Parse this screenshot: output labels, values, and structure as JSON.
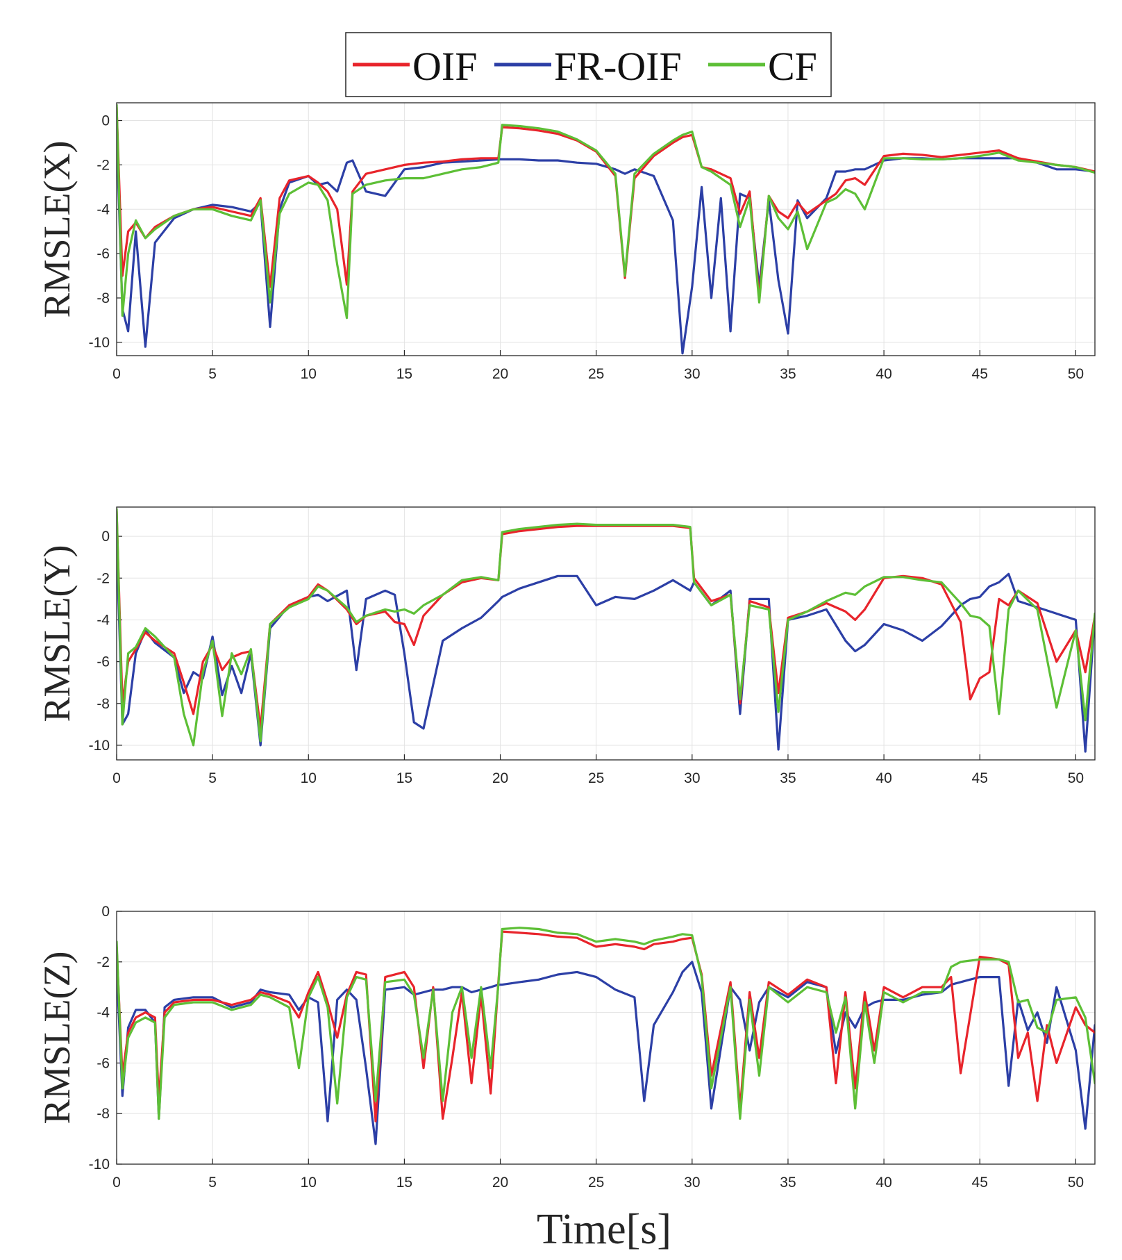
{
  "chart_data": {
    "type": "line",
    "xlabel": "Time[s]",
    "xlim": [
      0,
      51
    ],
    "xticks": [
      0,
      5,
      10,
      15,
      20,
      25,
      30,
      35,
      40,
      45,
      50
    ],
    "grid": true,
    "legend": {
      "placement": "top-center",
      "entries": [
        {
          "name": "OIF",
          "color": "#e8242b"
        },
        {
          "name": "FR-OIF",
          "color": "#2c3fa6"
        },
        {
          "name": "CF",
          "color": "#5dbf36"
        }
      ]
    },
    "panels": [
      {
        "ylabel": "RMSLE(X)",
        "ylim": [
          -10.6,
          0.8
        ],
        "yticks": [
          0,
          -2,
          -4,
          -6,
          -8,
          -10
        ],
        "x": [
          0,
          0.3,
          0.6,
          1,
          1.5,
          2,
          3,
          4,
          5,
          6,
          7,
          7.5,
          8,
          8.5,
          9,
          10,
          10.5,
          11,
          11.5,
          12,
          12.3,
          13,
          14,
          15,
          16,
          17,
          18,
          19,
          19.9,
          20.1,
          21,
          22,
          23,
          24,
          25,
          26,
          26.5,
          27,
          28,
          29,
          29.5,
          30,
          30.5,
          31,
          31.5,
          32,
          32.5,
          33,
          33.5,
          34,
          34.5,
          35,
          35.5,
          36,
          37,
          37.5,
          38,
          38.5,
          39,
          40,
          41,
          42,
          43,
          44,
          45,
          46,
          47,
          48,
          49,
          50,
          51
        ],
        "series": [
          {
            "name": "OIF",
            "values": [
              0.6,
              -7,
              -5,
              -4.6,
              -5.3,
              -4.8,
              -4.3,
              -4,
              -3.9,
              -4.1,
              -4.3,
              -3.5,
              -7.5,
              -3.5,
              -2.7,
              -2.5,
              -2.8,
              -3.2,
              -4,
              -7.4,
              -3.2,
              -2.4,
              -2.2,
              -2,
              -1.9,
              -1.85,
              -1.75,
              -1.7,
              -1.7,
              -0.3,
              -0.35,
              -0.45,
              -0.6,
              -0.9,
              -1.4,
              -2.5,
              -7.1,
              -2.6,
              -1.6,
              -1.0,
              -0.75,
              -0.65,
              -2.1,
              -2.2,
              -2.4,
              -2.6,
              -4.2,
              -3.2,
              -8,
              -3.4,
              -4.1,
              -4.4,
              -3.7,
              -4.2,
              -3.6,
              -3.3,
              -2.7,
              -2.6,
              -2.9,
              -1.6,
              -1.5,
              -1.55,
              -1.65,
              -1.55,
              -1.45,
              -1.35,
              -1.7,
              -1.85,
              -2,
              -2.1,
              -2.3
            ]
          },
          {
            "name": "FR-OIF",
            "values": [
              -0.5,
              -8.5,
              -9.5,
              -5,
              -10.2,
              -5.5,
              -4.4,
              -4,
              -3.8,
              -3.9,
              -4.1,
              -3.7,
              -9.3,
              -4,
              -2.8,
              -2.5,
              -2.9,
              -2.8,
              -3.2,
              -1.9,
              -1.8,
              -3.2,
              -3.4,
              -2.2,
              -2.1,
              -1.9,
              -1.85,
              -1.8,
              -1.75,
              -1.75,
              -1.75,
              -1.8,
              -1.8,
              -1.9,
              -1.95,
              -2.2,
              -2.4,
              -2.2,
              -2.5,
              -4.5,
              -10.5,
              -7.5,
              -3,
              -8,
              -3.5,
              -9.5,
              -3.3,
              -3.5,
              -7.5,
              -3.6,
              -7.2,
              -9.6,
              -3.6,
              -4.4,
              -3.5,
              -2.3,
              -2.3,
              -2.2,
              -2.2,
              -1.8,
              -1.7,
              -1.7,
              -1.75,
              -1.7,
              -1.7,
              -1.7,
              -1.7,
              -1.9,
              -2.2,
              -2.2,
              -2.3
            ]
          },
          {
            "name": "CF",
            "values": [
              0.7,
              -8.8,
              -6,
              -4.5,
              -5.3,
              -4.9,
              -4.3,
              -4,
              -4,
              -4.3,
              -4.5,
              -3.6,
              -8.2,
              -4.2,
              -3.3,
              -2.8,
              -2.9,
              -3.6,
              -6.5,
              -8.9,
              -3.3,
              -2.9,
              -2.7,
              -2.6,
              -2.6,
              -2.4,
              -2.2,
              -2.1,
              -1.9,
              -0.2,
              -0.25,
              -0.35,
              -0.5,
              -0.85,
              -1.35,
              -2.4,
              -7.0,
              -2.4,
              -1.5,
              -0.9,
              -0.65,
              -0.5,
              -2.1,
              -2.3,
              -2.6,
              -2.9,
              -4.8,
              -3.5,
              -8.2,
              -3.4,
              -4.4,
              -4.9,
              -4.1,
              -5.8,
              -3.7,
              -3.5,
              -3.1,
              -3.3,
              -4.0,
              -1.7,
              -1.7,
              -1.75,
              -1.75,
              -1.7,
              -1.6,
              -1.45,
              -1.8,
              -1.9,
              -2.0,
              -2.1,
              -2.35
            ]
          }
        ]
      },
      {
        "ylabel": "RMSLE(Y)",
        "ylim": [
          -10.7,
          1.4
        ],
        "yticks": [
          0,
          -2,
          -4,
          -6,
          -8,
          -10
        ],
        "x": [
          0,
          0.3,
          0.6,
          1,
          1.5,
          2,
          3,
          3.5,
          4,
          4.5,
          5,
          5.5,
          6,
          6.5,
          7,
          7.5,
          8,
          9,
          10,
          10.5,
          11,
          12,
          12.5,
          13,
          14,
          14.5,
          15,
          15.5,
          16,
          17,
          18,
          19,
          19.9,
          20.1,
          21,
          22,
          23,
          24,
          25,
          26,
          27,
          28,
          29,
          29.9,
          30.1,
          31,
          32,
          32.5,
          33,
          34,
          34.5,
          35,
          36,
          37,
          38,
          38.5,
          39,
          40,
          41,
          42,
          43,
          44,
          44.5,
          45,
          45.5,
          46,
          46.5,
          47,
          48,
          49,
          50,
          50.5,
          51
        ],
        "series": [
          {
            "name": "OIF",
            "values": [
              1.2,
              -8,
              -6,
              -5.4,
              -4.6,
              -5,
              -5.6,
              -7,
              -8.5,
              -6,
              -5.2,
              -6.4,
              -5.8,
              -5.6,
              -5.5,
              -9.2,
              -4.2,
              -3.3,
              -2.9,
              -2.3,
              -2.6,
              -3.5,
              -4.2,
              -3.8,
              -3.6,
              -4.1,
              -4.2,
              -5.2,
              -3.8,
              -2.8,
              -2.2,
              -2,
              -2.1,
              0.1,
              0.25,
              0.35,
              0.45,
              0.5,
              0.5,
              0.5,
              0.5,
              0.5,
              0.5,
              0.4,
              -2,
              -3.1,
              -2.8,
              -8,
              -3.1,
              -3.4,
              -7.5,
              -3.9,
              -3.6,
              -3.2,
              -3.6,
              -4,
              -3.5,
              -2,
              -1.9,
              -2,
              -2.3,
              -4.1,
              -7.8,
              -6.8,
              -6.5,
              -3,
              -3.3,
              -2.6,
              -3.2,
              -6,
              -4.5,
              -6.5,
              -3.8
            ]
          },
          {
            "name": "FR-OIF",
            "values": [
              -0.2,
              -9,
              -8.5,
              -5.6,
              -4.5,
              -5.1,
              -5.8,
              -7.5,
              -6.5,
              -6.8,
              -4.8,
              -7.6,
              -6.2,
              -7.5,
              -5.6,
              -10,
              -4.4,
              -3.3,
              -2.9,
              -2.8,
              -3.1,
              -2.6,
              -6.4,
              -3,
              -2.6,
              -2.8,
              -5.6,
              -8.9,
              -9.2,
              -5,
              -4.4,
              -3.9,
              -3.1,
              -2.9,
              -2.5,
              -2.2,
              -1.9,
              -1.9,
              -3.3,
              -2.9,
              -3,
              -2.6,
              -2.1,
              -2.6,
              -2.2,
              -3.3,
              -2.6,
              -8.5,
              -3,
              -3,
              -10.2,
              -4,
              -3.8,
              -3.5,
              -5,
              -5.5,
              -5.2,
              -4.2,
              -4.5,
              -5,
              -4.3,
              -3.3,
              -3,
              -2.9,
              -2.4,
              -2.2,
              -1.8,
              -3.1,
              -3.4,
              -3.7,
              -4,
              -10.3,
              -3.8
            ]
          },
          {
            "name": "CF",
            "values": [
              1.3,
              -9,
              -5.6,
              -5.3,
              -4.4,
              -4.8,
              -5.8,
              -8.5,
              -10,
              -6.5,
              -5,
              -8.6,
              -5.6,
              -6.6,
              -5.4,
              -9.8,
              -4.2,
              -3.4,
              -3,
              -2.4,
              -2.6,
              -3.4,
              -4.1,
              -3.8,
              -3.5,
              -3.6,
              -3.5,
              -3.7,
              -3.3,
              -2.8,
              -2.1,
              -1.95,
              -2.1,
              0.2,
              0.35,
              0.45,
              0.55,
              0.6,
              0.55,
              0.55,
              0.55,
              0.55,
              0.55,
              0.45,
              -2.2,
              -3.3,
              -2.8,
              -7.8,
              -3.3,
              -3.5,
              -8.4,
              -4,
              -3.6,
              -3.1,
              -2.7,
              -2.8,
              -2.4,
              -1.95,
              -1.95,
              -2.1,
              -2.2,
              -3.2,
              -3.8,
              -3.9,
              -4.3,
              -8.5,
              -3.5,
              -2.6,
              -3.5,
              -8.2,
              -4.5,
              -8.8,
              -3.7
            ]
          }
        ]
      },
      {
        "ylabel": "RMSLE(Z)",
        "ylim": [
          -10,
          0
        ],
        "yticks": [
          0,
          -2,
          -4,
          -6,
          -8,
          -10
        ],
        "x": [
          0,
          0.3,
          0.6,
          1,
          1.5,
          2,
          2.2,
          2.5,
          3,
          4,
          5,
          6,
          7,
          7.5,
          8,
          9,
          9.5,
          10,
          10.5,
          11,
          11.5,
          12,
          12.5,
          13,
          13.5,
          14,
          15,
          15.5,
          16,
          16.5,
          17,
          17.5,
          18,
          18.5,
          19,
          19.5,
          19.9,
          20.1,
          21,
          22,
          23,
          24,
          25,
          26,
          27,
          27.5,
          28,
          29,
          29.5,
          30,
          30.5,
          31,
          32,
          32.5,
          33,
          33.5,
          34,
          35,
          36,
          37,
          37.5,
          38,
          38.5,
          39,
          39.5,
          40,
          41,
          42,
          43,
          43.5,
          44,
          45,
          46,
          46.5,
          47,
          47.5,
          48,
          48.5,
          49,
          50,
          50.5,
          51
        ],
        "series": [
          {
            "name": "OIF",
            "values": [
              -1.4,
              -6.5,
              -4.8,
              -4.2,
              -4.0,
              -4.2,
              -7.5,
              -4.0,
              -3.6,
              -3.5,
              -3.5,
              -3.7,
              -3.5,
              -3.2,
              -3.3,
              -3.6,
              -4.2,
              -3.2,
              -2.4,
              -3.6,
              -5,
              -3.3,
              -2.4,
              -2.5,
              -8.3,
              -2.6,
              -2.4,
              -3,
              -6.2,
              -3,
              -8.2,
              -5.8,
              -3.2,
              -6.8,
              -3.3,
              -7.2,
              -2.8,
              -0.8,
              -0.85,
              -0.9,
              -1,
              -1.05,
              -1.4,
              -1.3,
              -1.4,
              -1.5,
              -1.3,
              -1.2,
              -1.1,
              -1.05,
              -2.5,
              -6.5,
              -2.8,
              -7.8,
              -3.2,
              -5.8,
              -2.8,
              -3.3,
              -2.7,
              -3,
              -6.8,
              -3.2,
              -7,
              -3.2,
              -5.5,
              -3,
              -3.4,
              -3,
              -3,
              -2.6,
              -6.4,
              -1.8,
              -1.9,
              -2.1,
              -5.8,
              -4.8,
              -7.5,
              -4.5,
              -6,
              -3.8,
              -4.5,
              -4.8
            ]
          },
          {
            "name": "FR-OIF",
            "values": [
              -2.1,
              -7.3,
              -4.6,
              -3.9,
              -3.9,
              -4.4,
              -8.2,
              -3.8,
              -3.5,
              -3.4,
              -3.4,
              -3.8,
              -3.6,
              -3.1,
              -3.2,
              -3.3,
              -3.9,
              -3.4,
              -3.6,
              -8.3,
              -3.5,
              -3.1,
              -3.5,
              -6.2,
              -9.2,
              -3.1,
              -3,
              -3.3,
              -3.2,
              -3.1,
              -3.1,
              -3,
              -3,
              -3.2,
              -3.1,
              -3.0,
              -2.9,
              -2.9,
              -2.8,
              -2.7,
              -2.5,
              -2.4,
              -2.6,
              -3.1,
              -3.4,
              -7.5,
              -4.5,
              -3.2,
              -2.4,
              -2.0,
              -3.2,
              -7.8,
              -3.0,
              -3.5,
              -5.5,
              -3.6,
              -3.0,
              -3.4,
              -2.8,
              -3.0,
              -5.6,
              -4.0,
              -4.6,
              -3.8,
              -3.6,
              -3.5,
              -3.5,
              -3.3,
              -3.2,
              -2.9,
              -2.8,
              -2.6,
              -2.6,
              -6.9,
              -3.5,
              -4.7,
              -4.0,
              -5.2,
              -3.0,
              -5.5,
              -8.6,
              -4.5
            ]
          },
          {
            "name": "CF",
            "values": [
              -1.2,
              -7.0,
              -5.0,
              -4.4,
              -4.2,
              -4.4,
              -8.2,
              -4.2,
              -3.7,
              -3.6,
              -3.6,
              -3.9,
              -3.7,
              -3.3,
              -3.4,
              -3.8,
              -6.2,
              -3.4,
              -2.6,
              -3.8,
              -7.6,
              -3.4,
              -2.6,
              -2.7,
              -7.5,
              -2.8,
              -2.7,
              -3.3,
              -5.8,
              -3.1,
              -7.5,
              -4.0,
              -3.0,
              -5.8,
              -3.0,
              -6.2,
              -2.9,
              -0.7,
              -0.65,
              -0.7,
              -0.85,
              -0.9,
              -1.2,
              -1.1,
              -1.2,
              -1.3,
              -1.15,
              -1.0,
              -0.9,
              -0.95,
              -2.6,
              -7.0,
              -3.0,
              -8.2,
              -3.5,
              -6.5,
              -3.0,
              -3.6,
              -3.0,
              -3.2,
              -4.8,
              -3.4,
              -7.8,
              -3.6,
              -6.0,
              -3.2,
              -3.6,
              -3.2,
              -3.2,
              -2.2,
              -2.0,
              -1.9,
              -1.9,
              -2.0,
              -3.6,
              -3.5,
              -4.6,
              -4.8,
              -3.5,
              -3.4,
              -4.2,
              -6.8
            ]
          }
        ]
      }
    ]
  }
}
